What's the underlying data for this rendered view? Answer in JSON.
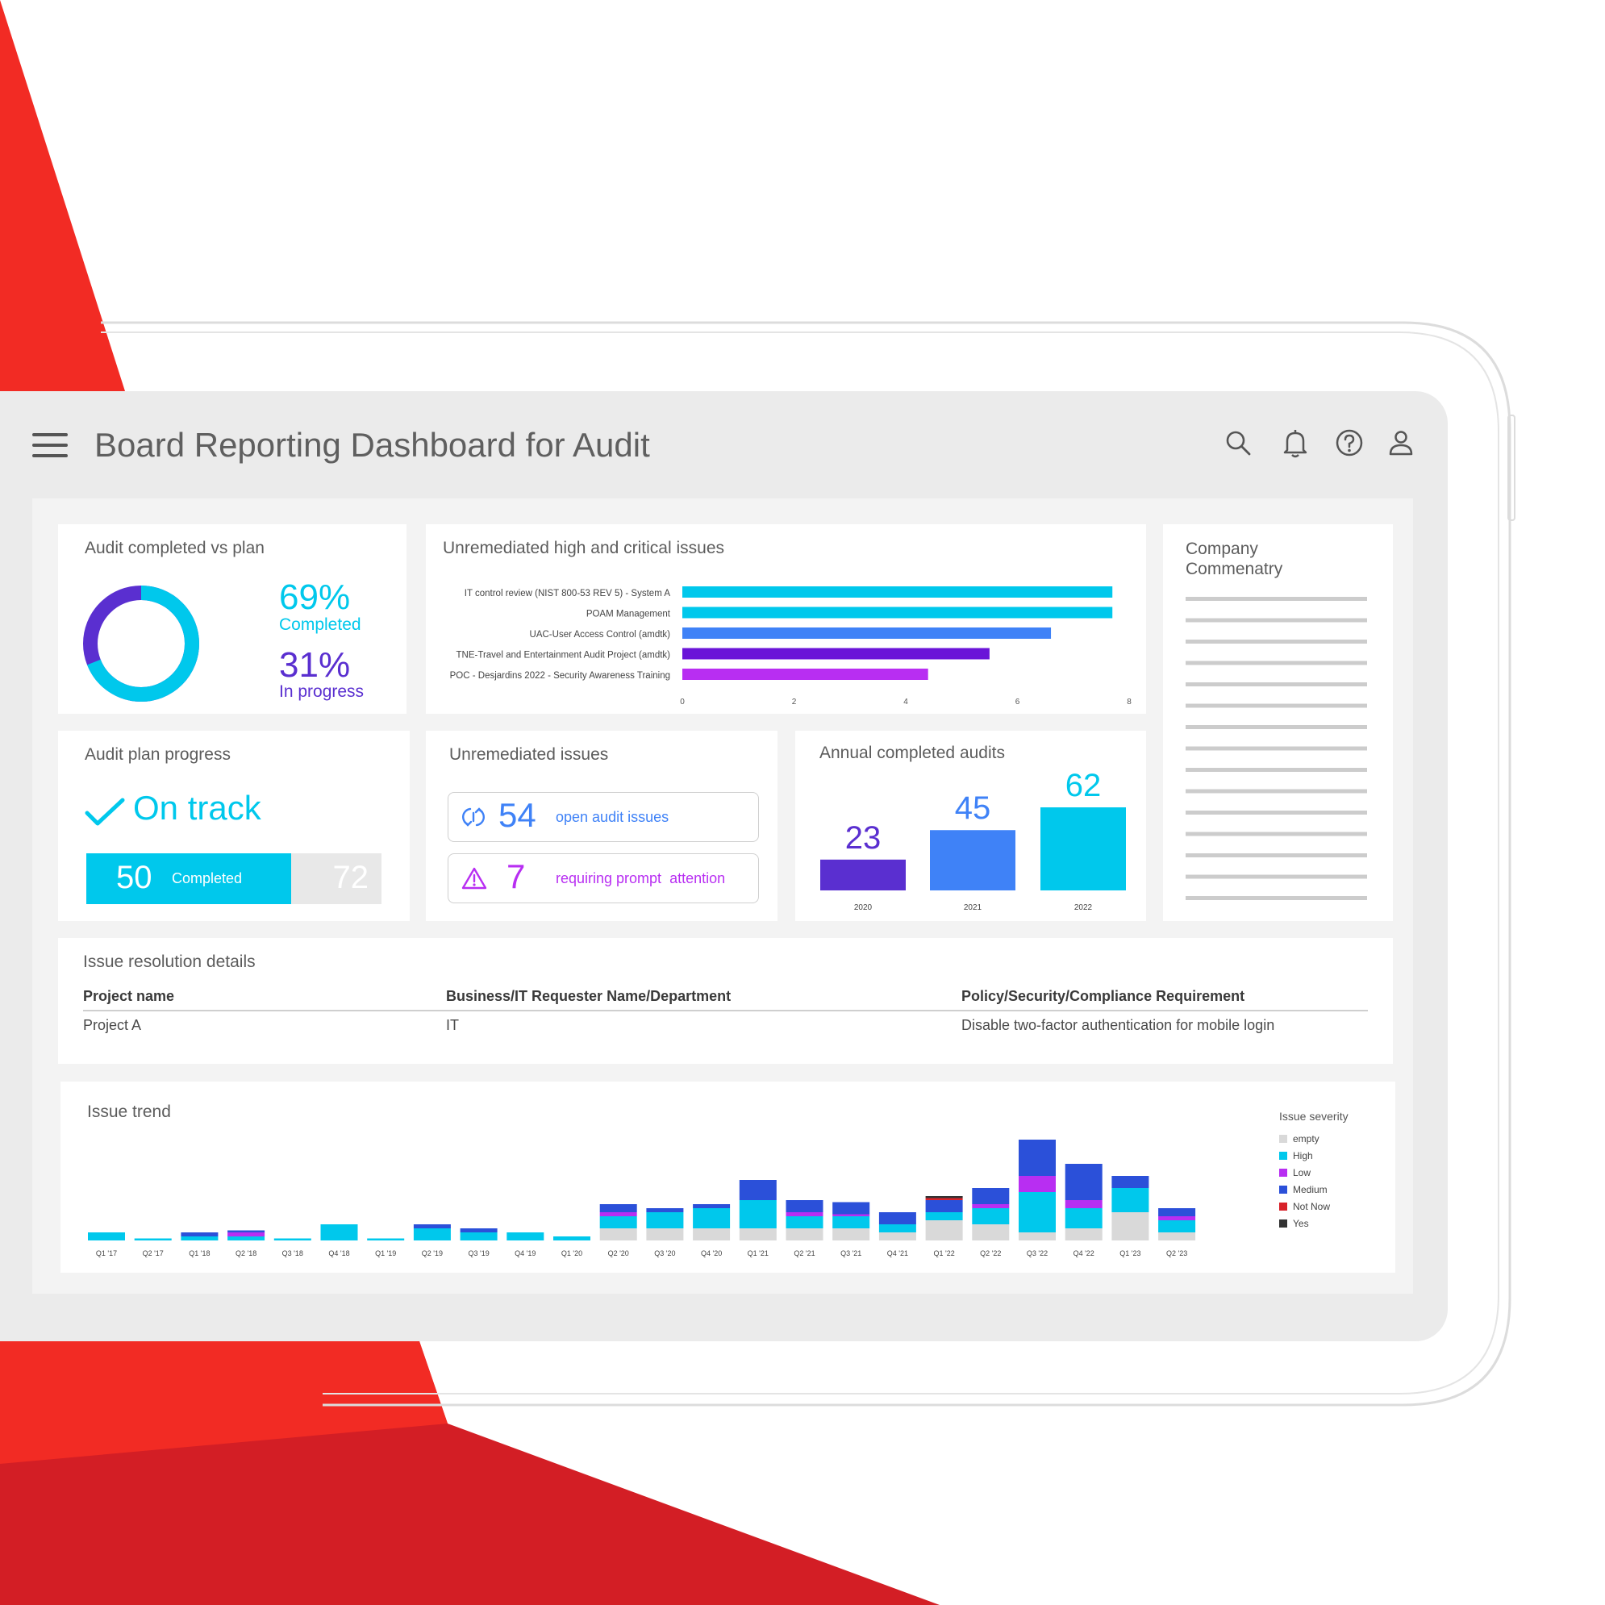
{
  "header": {
    "title": "Board Reporting Dashboard for Audit",
    "icons": [
      "menu-icon",
      "search-icon",
      "bell-icon",
      "help-icon",
      "user-icon"
    ]
  },
  "colors": {
    "cyan": "#00c8ec",
    "purple": "#5a2fd0",
    "blue": "#3f82f7",
    "violet": "#6a14d8",
    "magenta": "#b82ef2",
    "navy": "#2b50d9",
    "red": "#f22b24"
  },
  "audit_vs_plan": {
    "title": "Audit completed vs plan",
    "completed_pct": "69%",
    "completed_label": "Completed",
    "inprogress_pct": "31%",
    "inprogress_label": "In progress",
    "completed_fraction": 0.69
  },
  "high_critical": {
    "title": "Unremediated high and critical issues"
  },
  "commentary": {
    "title": "Company Commenatry"
  },
  "plan_progress": {
    "title": "Audit plan progress",
    "status": "On track",
    "completed_value": "50",
    "completed_label": "Completed",
    "total_value": "72",
    "completed_fraction": 0.694
  },
  "unremediated": {
    "title": "Unremediated issues",
    "open_value": "54",
    "open_label": "open audit issues",
    "prompt_value": "7",
    "prompt_label": "requiring prompt  attention"
  },
  "annual": {
    "title": "Annual completed audits"
  },
  "resolution": {
    "title": "Issue resolution details",
    "headers": [
      "Project name",
      "Business/IT Requester Name/Department",
      "Policy/Security/Compliance Requirement"
    ],
    "row": [
      "Project A",
      "IT",
      "Disable two-factor authentication for mobile login"
    ]
  },
  "trend": {
    "title": "Issue trend",
    "legend_title": "Issue severity"
  },
  "chart_data": [
    {
      "type": "bar",
      "orientation": "horizontal",
      "categories": [
        "IT control review (NIST 800-53 REV 5) - System A",
        "POAM Management",
        "UAC-User Access Control (amdtk)",
        "TNE-Travel and Entertainment Audit Project (amdtk)",
        "POC - Desjardins 2022 - Security Awareness Training"
      ],
      "values": [
        7.7,
        7.7,
        6.6,
        5.5,
        4.4
      ],
      "colors": [
        "#00c8ec",
        "#00c8ec",
        "#3f82f7",
        "#6a14d8",
        "#b82ef2"
      ],
      "xticks": [
        "0",
        "2",
        "4",
        "6",
        "8"
      ],
      "xlim": [
        0,
        8
      ]
    },
    {
      "type": "bar",
      "categories": [
        "2020",
        "2021",
        "2022"
      ],
      "values": [
        23,
        45,
        62
      ],
      "colors": [
        "#5a2fd0",
        "#3f82f7",
        "#00c8ec"
      ],
      "ylim": [
        0,
        62
      ]
    },
    {
      "type": "bar",
      "stacked": true,
      "categories": [
        "Q1 '17",
        "Q2 '17",
        "Q1 '18",
        "Q2 '18",
        "Q3 '18",
        "Q4 '18",
        "Q1 '19",
        "Q2 '19",
        "Q3 '19",
        "Q4 '19",
        "Q1 '20",
        "Q2 '20",
        "Q3 '20",
        "Q4 '20",
        "Q1 '21",
        "Q2 '21",
        "Q3 '21",
        "Q4 '21",
        "Q1 '22",
        "Q2 '22",
        "Q3 '22",
        "Q4 '22",
        "Q1 '23",
        "Q2 '23"
      ],
      "series": [
        {
          "name": "empty",
          "color": "#d9d9d9",
          "values": [
            0,
            0,
            0,
            0,
            0,
            0,
            0,
            0,
            0,
            0,
            0,
            3,
            3,
            3,
            3,
            3,
            3,
            2,
            5,
            4,
            2,
            3,
            7,
            2
          ]
        },
        {
          "name": "High",
          "color": "#00c8ec",
          "values": [
            2,
            0.5,
            1,
            1,
            0.5,
            4,
            0.5,
            3,
            2,
            2,
            1,
            3,
            4,
            5,
            7,
            3,
            3,
            2,
            2,
            4,
            10,
            5,
            6,
            3
          ]
        },
        {
          "name": "Low",
          "color": "#b82ef2",
          "values": [
            0,
            0,
            0,
            1,
            0,
            0,
            0,
            0,
            0,
            0,
            0,
            1,
            0,
            0,
            0,
            1,
            0.5,
            0,
            0,
            1,
            4,
            2,
            0,
            1
          ]
        },
        {
          "name": "Medium",
          "color": "#2b50d9",
          "values": [
            0,
            0,
            1,
            0.5,
            0,
            0,
            0,
            1,
            1,
            0,
            0,
            2,
            1,
            1,
            5,
            3,
            3,
            3,
            3,
            4,
            9,
            9,
            3,
            2
          ]
        },
        {
          "name": "Not Now",
          "color": "#d8222a",
          "values": [
            0,
            0,
            0,
            0,
            0,
            0,
            0,
            0,
            0,
            0,
            0,
            0,
            0,
            0,
            0,
            0,
            0,
            0,
            0.5,
            0,
            0,
            0,
            0,
            0
          ]
        },
        {
          "name": "Yes",
          "color": "#333333",
          "values": [
            0,
            0,
            0,
            0,
            0,
            0,
            0,
            0,
            0,
            0,
            0,
            0,
            0,
            0,
            0,
            0,
            0,
            0,
            0.5,
            0,
            0,
            0,
            0,
            0
          ]
        }
      ],
      "legend": "right"
    }
  ]
}
